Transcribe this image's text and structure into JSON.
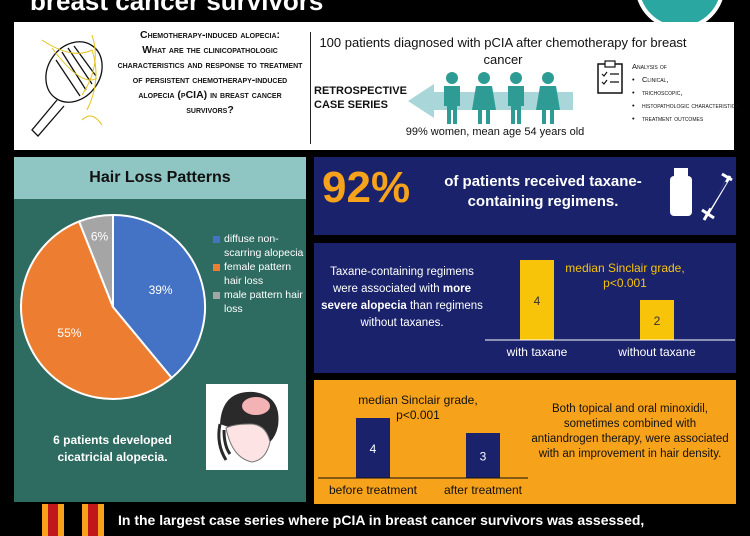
{
  "header": {
    "title_partial": "breast cancer survivors"
  },
  "question": {
    "title": "Chemotherapy-induced alopecia:",
    "body": "What are the clinicopathologic characteristics and response to treatment of persistent chemotherapy-induced alopecia (pCIA) in breast cancer survivors?"
  },
  "study": {
    "title": "100 patients diagnosed with pCIA after chemotherapy for breast cancer",
    "design": "RETROSPECTIVE CASE SERIES",
    "demographics": "99% women, mean age 54 years old"
  },
  "analysis": {
    "title": "Analysis of",
    "items": [
      "Clinical,",
      "trichoscopic,",
      "histopathologic characteristics",
      "treatment outcomes"
    ]
  },
  "hair_loss": {
    "title": "Hair Loss Patterns",
    "cicatricial": "6 patients developed cicatricial alopecia."
  },
  "taxane": {
    "percent": "92%",
    "text": "of patients received taxane-containing regimens.",
    "comparison_pre": "Taxane-containing regimens were associated with ",
    "comparison_bold": "more severe alopecia",
    "comparison_post": " than regimens without taxanes."
  },
  "minoxidil": {
    "text": "Both topical and oral minoxidil, sometimes combined with antiandrogen therapy, were associated with an improvement in hair density."
  },
  "bottom": {
    "text": "In the largest case series where pCIA in breast cancer survivors was assessed,"
  },
  "colors": {
    "navy": "#19226b",
    "orange": "#f7a21b",
    "teal": "#2e6b61",
    "blue": "#4472c4",
    "pie_orange": "#ed7d31",
    "gray": "#a5a5a5"
  },
  "chart_data": [
    {
      "type": "pie",
      "title": "Hair Loss Patterns",
      "categories": [
        "diffuse non-scarring alopecia",
        "female pattern hair loss",
        "male pattern hair loss"
      ],
      "values": [
        39,
        55,
        6
      ],
      "labels": [
        "39%",
        "55%",
        "6%"
      ],
      "legend": "right"
    },
    {
      "type": "bar",
      "annotation": "median Sinclair grade, p<0.001",
      "categories": [
        "with taxane",
        "without taxane"
      ],
      "values": [
        4,
        2
      ]
    },
    {
      "type": "bar",
      "annotation": "median Sinclair grade, p<0.001",
      "categories": [
        "before treatment",
        "after treatment"
      ],
      "values": [
        4,
        3
      ]
    }
  ]
}
